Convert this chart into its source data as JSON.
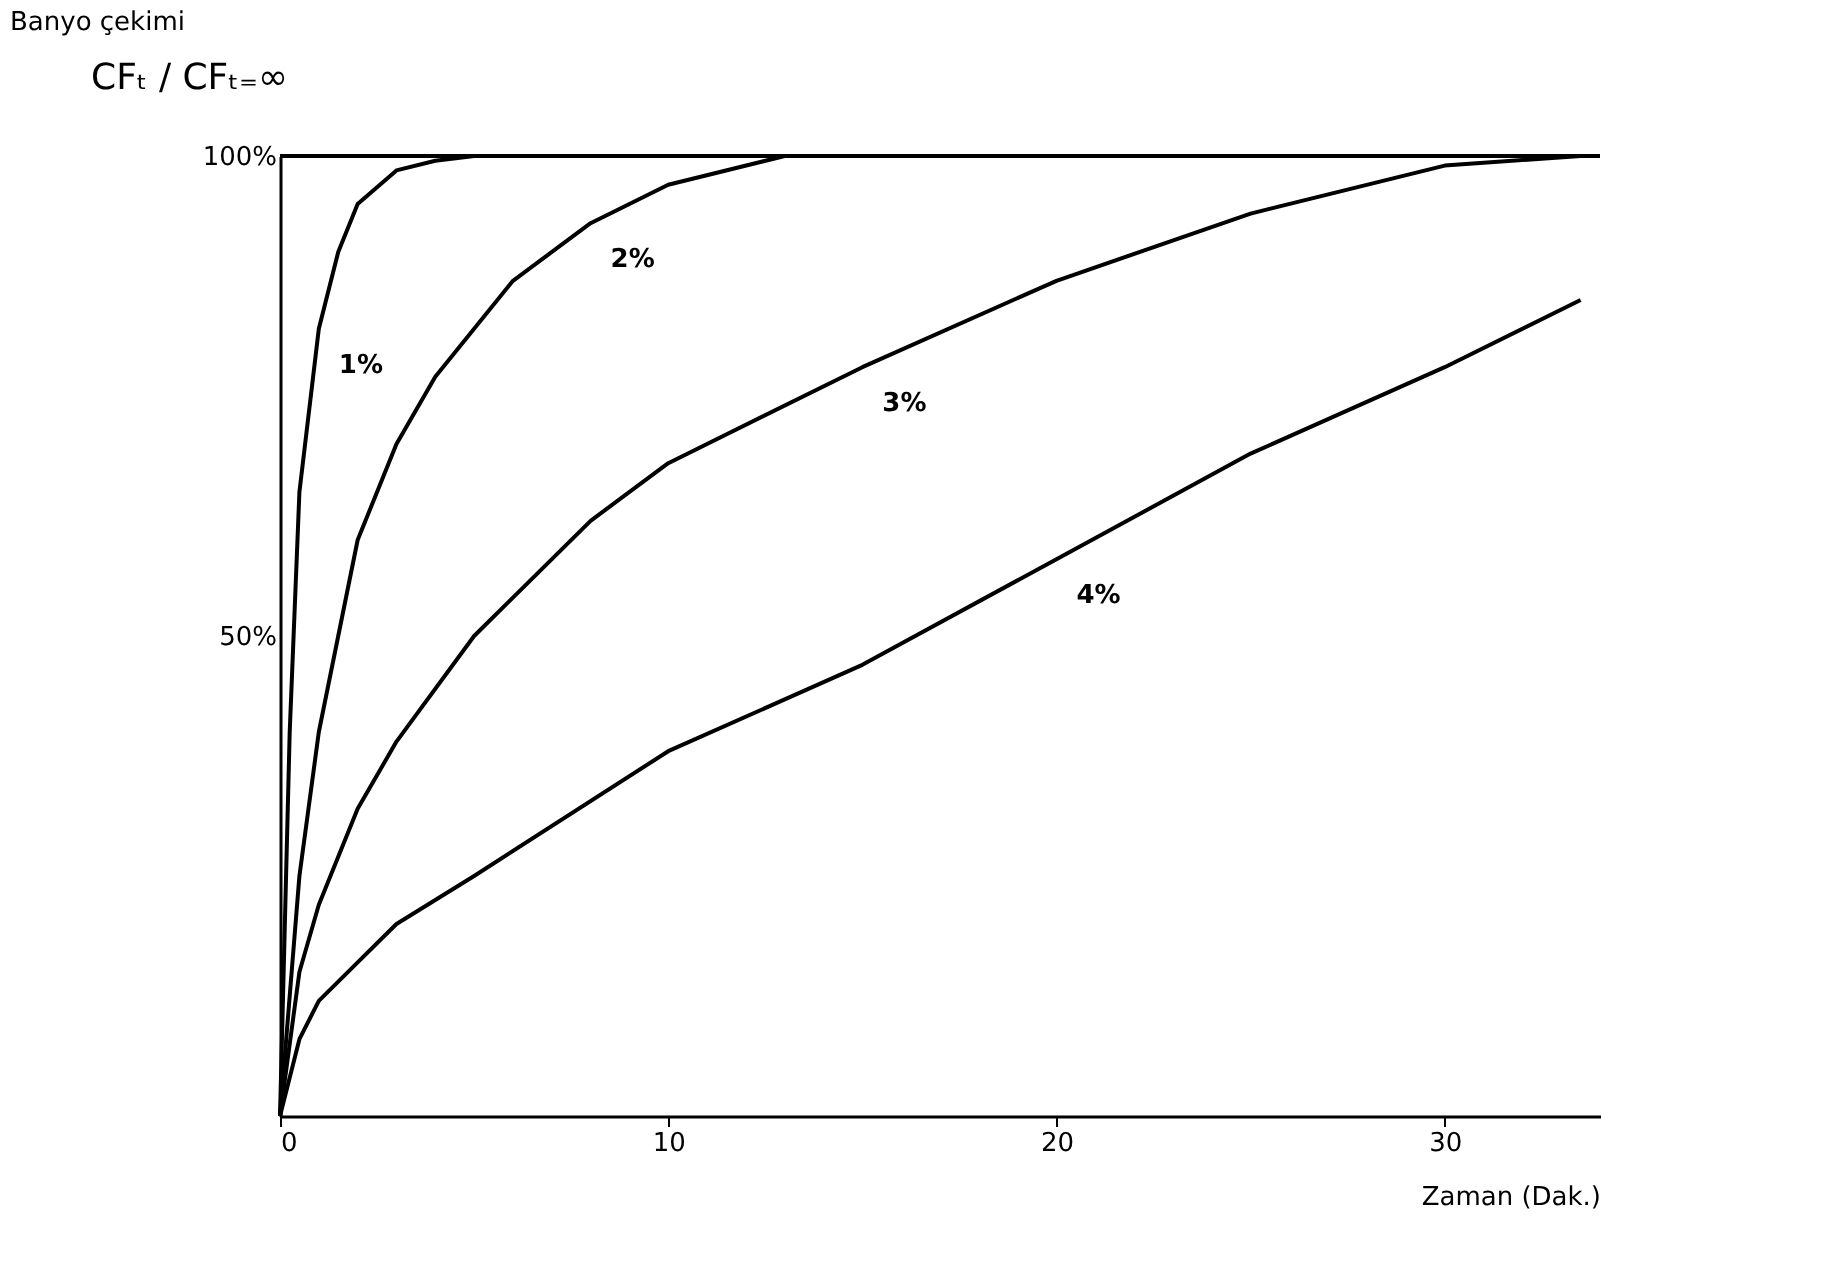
{
  "chart_data": {
    "type": "line",
    "title": "Banyo çekimi",
    "xlabel": "Zaman (Dak.)",
    "ylabel": "CFₜ / CFₜ₌∞",
    "xlim": [
      0,
      34
    ],
    "xticks": [
      0,
      10,
      20,
      30
    ],
    "ylim": [
      0,
      100
    ],
    "yticks": [
      {
        "value": 50,
        "label": "50%"
      },
      {
        "value": 100,
        "label": "100%"
      }
    ],
    "grid": false,
    "legend": false,
    "marker": "none",
    "line_style": "solid",
    "ref_lines": [
      {
        "axis": "y",
        "value": 100,
        "label": null
      }
    ],
    "series": [
      {
        "name": "1%",
        "color": "#000000",
        "x": [
          0,
          0.25,
          0.5,
          1,
          1.5,
          2,
          3,
          4,
          5
        ],
        "values": [
          0,
          40,
          65,
          82,
          90,
          95,
          98.5,
          99.5,
          100
        ]
      },
      {
        "name": "2%",
        "color": "#000000",
        "x": [
          0,
          0.5,
          1,
          2,
          3,
          4,
          6,
          8,
          10,
          13
        ],
        "values": [
          0,
          25,
          40,
          60,
          70,
          77,
          87,
          93,
          97,
          100
        ]
      },
      {
        "name": "3%",
        "color": "#000000",
        "x": [
          0,
          0.5,
          1,
          2,
          3,
          5,
          8,
          10,
          15,
          20,
          25,
          30,
          33.5
        ],
        "values": [
          0,
          15,
          22,
          32,
          39,
          50,
          62,
          68,
          78,
          87,
          94,
          99,
          100
        ]
      },
      {
        "name": "4%",
        "color": "#000000",
        "x": [
          0,
          0.5,
          1,
          2,
          3,
          5,
          10,
          15,
          20,
          25,
          30,
          33.5
        ],
        "values": [
          0,
          8,
          12,
          16,
          20,
          25,
          38,
          47,
          58,
          69,
          78,
          85
        ]
      }
    ]
  }
}
